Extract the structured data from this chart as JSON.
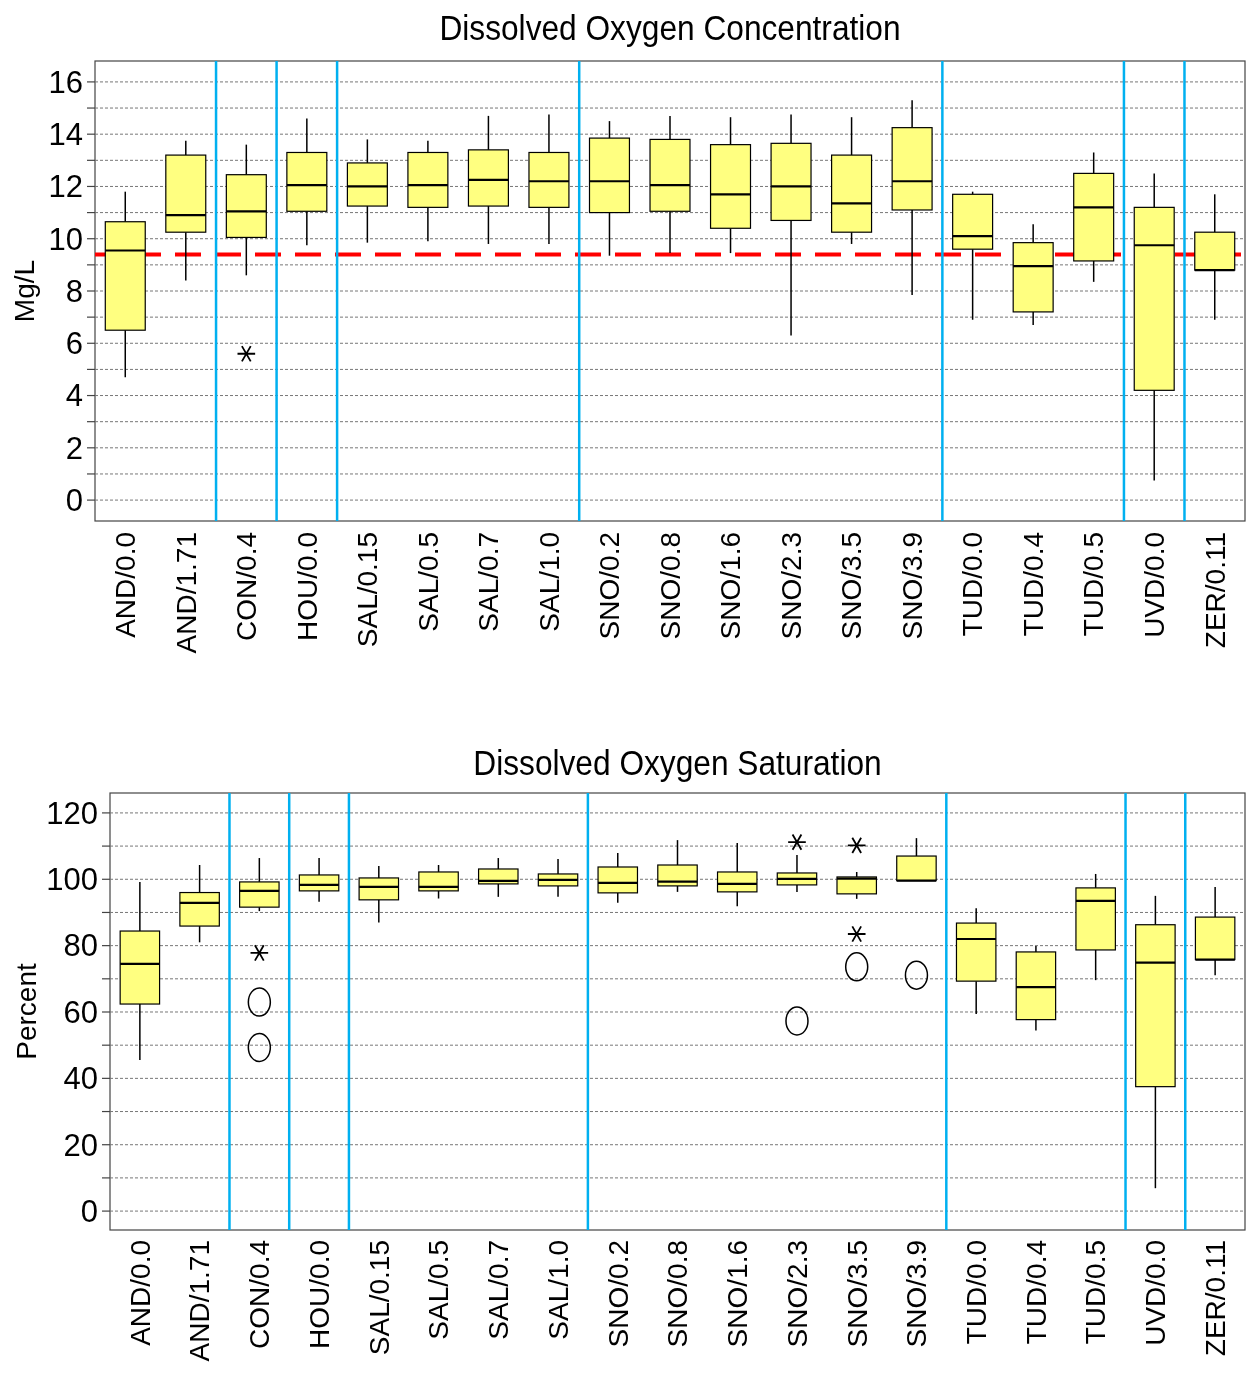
{
  "chart_data": [
    {
      "type": "box",
      "title": "Dissolved Oxygen Concentration",
      "ylabel": "Mg/L",
      "categories": [
        "AND/0.0",
        "AND/1.71",
        "CON/0.4",
        "HOU/0.0",
        "SAL/0.15",
        "SAL/0.5",
        "SAL/0.7",
        "SAL/1.0",
        "SNO/0.2",
        "SNO/0.8",
        "SNO/1.6",
        "SNO/2.3",
        "SNO/3.5",
        "SNO/3.9",
        "TUD/0.0",
        "TUD/0.4",
        "TUD/0.5",
        "UVD/0.0",
        "ZER/0.11"
      ],
      "series": [
        {
          "type": "box",
          "color": "#ffff80",
          "boxes": [
            {
              "low": 4.7,
              "q1": 6.5,
              "median": 9.55,
              "q3": 10.65,
              "high": 11.8
            },
            {
              "low": 8.4,
              "q1": 10.25,
              "median": 10.9,
              "q3": 13.2,
              "high": 13.75
            },
            {
              "low": 8.6,
              "q1": 10.05,
              "median": 11.05,
              "q3": 12.45,
              "high": 13.6
            },
            {
              "low": 9.75,
              "q1": 11.05,
              "median": 12.05,
              "q3": 13.3,
              "high": 14.6
            },
            {
              "low": 9.85,
              "q1": 11.25,
              "median": 12.0,
              "q3": 12.9,
              "high": 13.8
            },
            {
              "low": 9.9,
              "q1": 11.2,
              "median": 12.05,
              "q3": 13.3,
              "high": 13.75
            },
            {
              "low": 9.8,
              "q1": 11.25,
              "median": 12.25,
              "q3": 13.4,
              "high": 14.7
            },
            {
              "low": 9.8,
              "q1": 11.2,
              "median": 12.2,
              "q3": 13.3,
              "high": 14.75
            },
            {
              "low": 9.35,
              "q1": 11.0,
              "median": 12.2,
              "q3": 13.85,
              "high": 14.5
            },
            {
              "low": 9.45,
              "q1": 11.05,
              "median": 12.05,
              "q3": 13.8,
              "high": 14.7
            },
            {
              "low": 9.45,
              "q1": 10.4,
              "median": 11.7,
              "q3": 13.6,
              "high": 14.65
            },
            {
              "low": 6.3,
              "q1": 10.7,
              "median": 12.0,
              "q3": 13.65,
              "high": 14.75
            },
            {
              "low": 9.8,
              "q1": 10.25,
              "median": 11.35,
              "q3": 13.2,
              "high": 14.65
            },
            {
              "low": 7.85,
              "q1": 11.1,
              "median": 12.2,
              "q3": 14.25,
              "high": 15.3
            },
            {
              "low": 6.9,
              "q1": 9.6,
              "median": 10.1,
              "q3": 11.7,
              "high": 11.8
            },
            {
              "low": 6.7,
              "q1": 7.2,
              "median": 8.95,
              "q3": 9.85,
              "high": 10.55
            },
            {
              "low": 8.35,
              "q1": 9.15,
              "median": 11.2,
              "q3": 12.5,
              "high": 13.3
            },
            {
              "low": 0.75,
              "q1": 4.2,
              "median": 9.75,
              "q3": 11.2,
              "high": 12.5
            },
            {
              "low": 6.9,
              "q1": 8.8,
              "median": 8.8,
              "q3": 10.25,
              "high": 11.7
            }
          ]
        },
        {
          "type": "scatter",
          "marker": "cross",
          "color": "#000000",
          "x": [
            "CON/0.4"
          ],
          "values": [
            5.6
          ]
        }
      ],
      "ylim": [
        -0.8,
        16.8
      ],
      "yticks": [
        0,
        {
          "value": 1,
          "label": null
        },
        2,
        {
          "value": 3,
          "label": null
        },
        4,
        {
          "value": 5,
          "label": null
        },
        6,
        {
          "value": 7,
          "label": null
        },
        8,
        {
          "value": 9,
          "label": null
        },
        10,
        {
          "value": 11,
          "label": null
        },
        12,
        {
          "value": 13,
          "label": null
        },
        14,
        {
          "value": 15,
          "label": null
        },
        16
      ],
      "grid": "y",
      "ref_lines": [
        {
          "axis": "y",
          "value": 9.4,
          "color": "#ff0000",
          "line_style": "dashed"
        }
      ]
    },
    {
      "type": "box",
      "title": "Dissolved Oxygen Saturation",
      "ylabel": "Percent",
      "categories": [
        "AND/0.0",
        "AND/1.71",
        "CON/0.4",
        "HOU/0.0",
        "SAL/0.15",
        "SAL/0.5",
        "SAL/0.7",
        "SAL/1.0",
        "SNO/0.2",
        "SNO/0.8",
        "SNO/1.6",
        "SNO/2.3",
        "SNO/3.5",
        "SNO/3.9",
        "TUD/0.0",
        "TUD/0.4",
        "TUD/0.5",
        "UVD/0.0",
        "ZER/0.11"
      ],
      "series": [
        {
          "type": "box",
          "color": "#ffff80",
          "boxes": [
            {
              "low": 45.5,
              "q1": 62.4,
              "median": 74.5,
              "q3": 84.4,
              "high": 99.2
            },
            {
              "low": 81,
              "q1": 85.9,
              "median": 92.9,
              "q3": 96,
              "high": 104.3
            },
            {
              "low": 90.4,
              "q1": 91.6,
              "median": 96.5,
              "q3": 99.2,
              "high": 106.4,
              "outliers": [
                63,
                49.3
              ]
            },
            {
              "low": 93.2,
              "q1": 96.5,
              "median": 98.3,
              "q3": 101.3,
              "high": 106.4
            },
            {
              "low": 87,
              "q1": 93.8,
              "median": 97.7,
              "q3": 100.4,
              "high": 104
            },
            {
              "low": 94.2,
              "q1": 96.5,
              "median": 97.7,
              "q3": 102.2,
              "high": 104.3
            },
            {
              "low": 94.7,
              "q1": 98.6,
              "median": 99.5,
              "q3": 103.1,
              "high": 106.4
            },
            {
              "low": 94.7,
              "q1": 98,
              "median": 99.8,
              "q3": 101.6,
              "high": 106.1
            },
            {
              "low": 92.9,
              "q1": 95.9,
              "median": 98.9,
              "q3": 103.7,
              "high": 107.9
            },
            {
              "low": 96.2,
              "q1": 98,
              "median": 99.3,
              "q3": 104.3,
              "high": 111.8
            },
            {
              "low": 91.9,
              "q1": 96.2,
              "median": 98.6,
              "q3": 102.2,
              "high": 110.9
            },
            {
              "low": 96.2,
              "q1": 98.3,
              "median": 100.1,
              "q3": 101.9,
              "high": 107.3,
              "outliers": [
                57.3
              ]
            },
            {
              "low": 94.1,
              "q1": 95.6,
              "median": 100.2,
              "q3": 100.7,
              "high": 102.2,
              "outliers": [
                73.6
              ]
            },
            {
              "low": 99.6,
              "q1": 99.6,
              "median": 99.6,
              "q3": 107,
              "high": 112.4,
              "outliers": [
                71.1
              ]
            },
            {
              "low": 59.4,
              "q1": 69.3,
              "median": 82,
              "q3": 86.8,
              "high": 91.3
            },
            {
              "low": 54.4,
              "q1": 57.7,
              "median": 67.5,
              "q3": 78.1,
              "high": 79.9
            },
            {
              "low": 69.6,
              "q1": 78.7,
              "median": 93.5,
              "q3": 97.4,
              "high": 101.6
            },
            {
              "low": 6.9,
              "q1": 37.5,
              "median": 74.9,
              "q3": 86.3,
              "high": 95
            },
            {
              "low": 71.1,
              "q1": 75.8,
              "median": 75.8,
              "q3": 88.6,
              "high": 97.7
            }
          ]
        },
        {
          "type": "scatter",
          "marker": "cross",
          "color": "#000000",
          "x": [
            "CON/0.4",
            "SNO/2.3",
            "SNO/3.5",
            "SNO/3.5"
          ],
          "values": [
            77.8,
            111.2,
            110.2,
            83.5
          ]
        }
      ],
      "ylim": [
        -5.7,
        126
      ],
      "yticks": [
        0,
        {
          "value": 10,
          "label": null
        },
        20,
        {
          "value": 30,
          "label": null
        },
        40,
        {
          "value": 50,
          "label": null
        },
        60,
        {
          "value": 70,
          "label": null
        },
        80,
        {
          "value": 90,
          "label": null
        },
        100,
        {
          "value": 110,
          "label": null
        },
        120
      ],
      "grid": "y"
    }
  ]
}
